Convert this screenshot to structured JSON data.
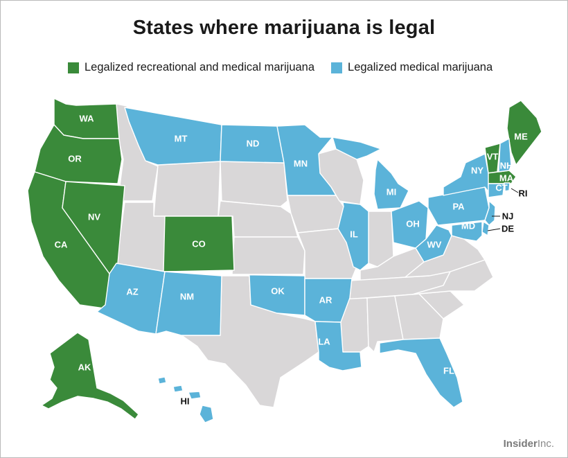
{
  "title": "States where marijuana is legal",
  "legend": {
    "recreational": {
      "label": "Legalized recreational and medical marijuana",
      "color": "#3a8a3a"
    },
    "medical": {
      "label": "Legalized medical marijuana",
      "color": "#5bb3d9"
    }
  },
  "other_color": "#d9d7d8",
  "states": {
    "WA": "WA",
    "OR": "OR",
    "CA": "CA",
    "NV": "NV",
    "CO": "CO",
    "AK": "AK",
    "ME": "ME",
    "VT": "VT",
    "MA": "MA",
    "MT": "MT",
    "ND": "ND",
    "MN": "MN",
    "AZ": "AZ",
    "NM": "NM",
    "OK": "OK",
    "AR": "AR",
    "LA": "LA",
    "IL": "IL",
    "MI": "MI",
    "OH": "OH",
    "WV": "WV",
    "PA": "PA",
    "NY": "NY",
    "NH": "NH",
    "CT": "CT",
    "MD": "MD",
    "FL": "FL",
    "RI": "RI",
    "NJ": "NJ",
    "DE": "DE",
    "HI": "HI"
  },
  "brand": {
    "name": "Insider",
    "suffix": "Inc."
  }
}
